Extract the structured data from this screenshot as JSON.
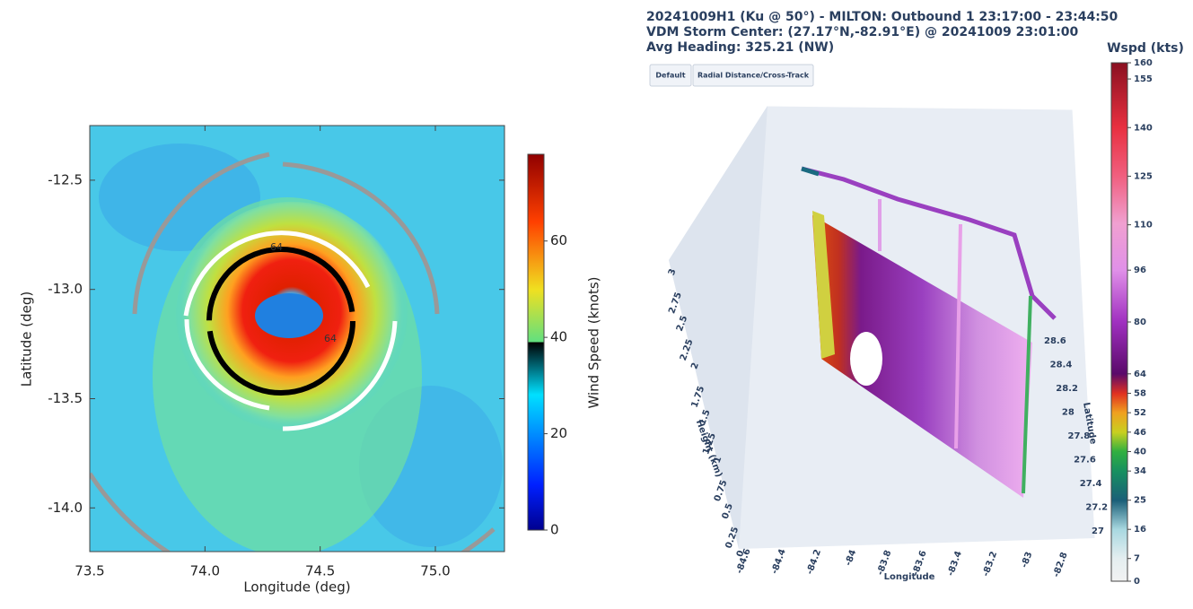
{
  "chart_data": [
    {
      "type": "heatmap",
      "xlabel": "Longitude (deg)",
      "ylabel": "Latitude (deg)",
      "xlim": [
        73.5,
        75.3
      ],
      "ylim": [
        -14.2,
        -12.25
      ],
      "xticks": [
        73.5,
        {
          "value": 74,
          "label": "74.0"
        },
        74.5,
        {
          "value": 75,
          "label": "75.0"
        }
      ],
      "yticks": [
        -12.5,
        {
          "value": -13,
          "label": "-13.0"
        },
        -13.5,
        {
          "value": -14,
          "label": "-14.0"
        }
      ],
      "annotations": [
        "64",
        "64"
      ],
      "colorbar": {
        "label": "Wind Speed (knots)",
        "lim": [
          0,
          78
        ],
        "ticks": [
          0,
          20,
          40,
          60
        ]
      }
    },
    {
      "type": "scatter3d",
      "title": [
        "20241009H1 (Ku @ 50°) - MILTON: Outbound 1 23:17:00 - 23:44:50",
        "VDM Storm Center: (27.17°N,-82.91°E) @ 20241009 23:01:00",
        "Avg Heading: 325.21 (NW)"
      ],
      "buttons": [
        "Default",
        "Radial Distance/Cross-Track"
      ],
      "xlabel": "Longitude",
      "ylabel": "Latitude",
      "zlabel": "Height (km)",
      "xlim": [
        -84.6,
        -82.8
      ],
      "xticks": [
        -84.6,
        -84.4,
        -84.2,
        -84,
        -83.8,
        -83.6,
        -83.4,
        -83.2,
        -83,
        -82.8
      ],
      "ylim": [
        27,
        28.6
      ],
      "yticks": [
        27,
        27.2,
        27.4,
        27.6,
        27.8,
        28,
        28.2,
        28.4,
        28.6
      ],
      "zlim": [
        0,
        3
      ],
      "zticks": [
        0,
        0.25,
        0.5,
        0.75,
        1,
        1.25,
        1.5,
        1.75,
        2,
        2.25,
        2.5,
        2.75,
        3
      ],
      "colorbar": {
        "label": "Wspd (kts)",
        "lim": [
          0,
          160
        ],
        "ticks": [
          0,
          7,
          16,
          25,
          34,
          40,
          46,
          52,
          58,
          64,
          80,
          96,
          110,
          125,
          140,
          155,
          160
        ]
      }
    }
  ]
}
